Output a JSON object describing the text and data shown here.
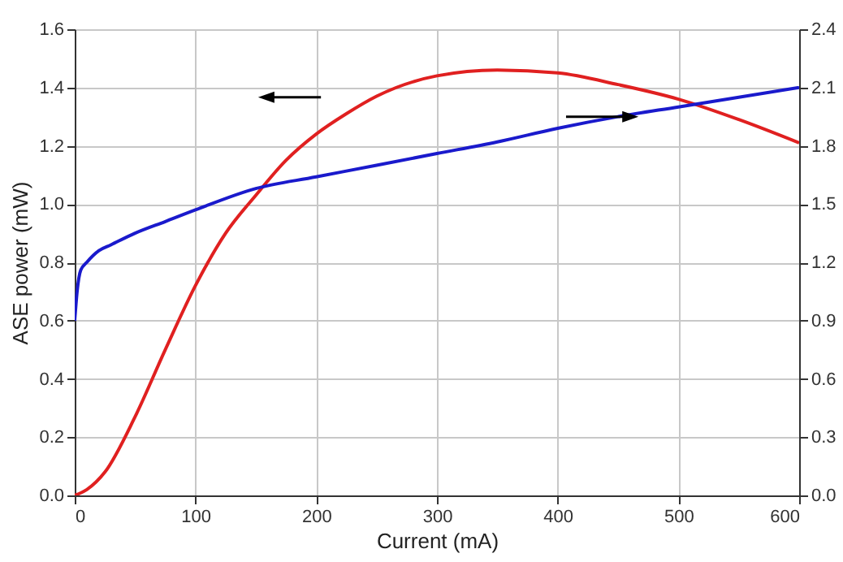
{
  "chart_data": {
    "type": "line",
    "xlabel": "Current (mA)",
    "ylabel": "ASE power (mW)",
    "xlim": [
      0,
      600
    ],
    "xticks": [
      0,
      100,
      200,
      300,
      400,
      500,
      600
    ],
    "ylim": [
      0,
      1.6
    ],
    "yticks": [
      {
        "value": 0,
        "label": "0.0"
      },
      0.2,
      0.4,
      0.6,
      0.8,
      {
        "value": 1,
        "label": "1.0"
      },
      1.2,
      1.4,
      1.6
    ],
    "y2lim": [
      0,
      2.4
    ],
    "y2ticks": [
      {
        "value": 0,
        "label": "0.0"
      },
      0.3,
      0.6,
      0.9,
      1.2,
      1.5,
      1.8,
      2.1,
      2.4
    ],
    "grid": true,
    "series": [
      {
        "color": "#e02020",
        "x": [
          0,
          10,
          25,
          50,
          75,
          100,
          125,
          150,
          175,
          200,
          225,
          250,
          300,
          350,
          400,
          450,
          500,
          550,
          600
        ],
        "values": [
          0,
          0.02,
          0.08,
          0.27,
          0.5,
          0.72,
          0.9,
          1.03,
          1.15,
          1.24,
          1.31,
          1.37,
          1.44,
          1.46,
          1.45,
          1.41,
          1.36,
          1.29,
          1.21
        ]
      },
      {
        "color": "#1a1acc",
        "axis": "y2",
        "x": [
          0,
          2,
          5,
          10,
          20,
          30,
          50,
          75,
          100,
          150,
          200,
          250,
          300,
          350,
          400,
          450,
          500,
          550,
          600
        ],
        "values": [
          0.9,
          1.05,
          1.16,
          1.2,
          1.26,
          1.29,
          1.35,
          1.41,
          1.47,
          1.58,
          1.64,
          1.7,
          1.76,
          1.82,
          1.89,
          1.95,
          2.0,
          2.05,
          2.1
        ]
      }
    ]
  }
}
